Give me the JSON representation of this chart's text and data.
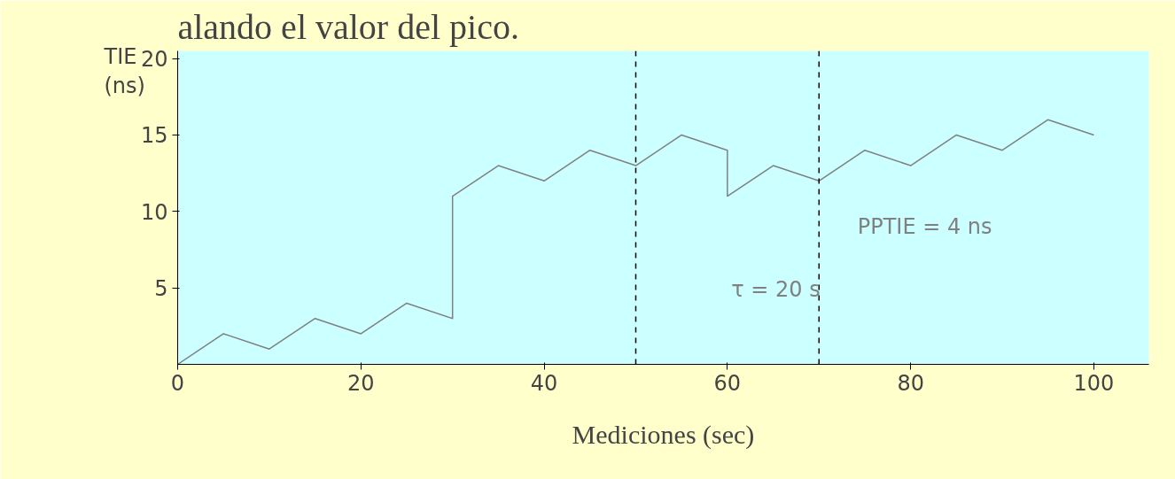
{
  "chart_data": {
    "type": "line",
    "title": "alando el valor del pico.",
    "xlabel": "Mediciones (sec)",
    "ylabel": "TIE (ns)",
    "x": [
      0,
      5,
      10,
      15,
      20,
      25,
      30,
      30,
      35,
      40,
      45,
      50,
      55,
      60,
      60,
      65,
      70,
      75,
      80,
      85,
      90,
      95,
      100
    ],
    "series": [
      {
        "color": "#808080",
        "values": [
          0,
          2,
          1,
          3,
          2,
          4,
          3,
          11,
          13,
          12,
          14,
          13,
          15,
          14,
          11,
          13,
          12,
          14,
          13,
          15,
          14,
          16,
          15
        ]
      }
    ],
    "xlim": [
      0,
      106
    ],
    "xticks": [
      0,
      20,
      40,
      60,
      80,
      100
    ],
    "ylim": [
      0,
      20.5
    ],
    "yticks": [
      5,
      10,
      15,
      20
    ],
    "ref_lines": [
      {
        "axis": "x",
        "value": 50,
        "label": null,
        "line_style": "dashed",
        "color": "#000000"
      },
      {
        "axis": "x",
        "value": 70,
        "label": null,
        "line_style": "dashed",
        "color": "#000000"
      }
    ],
    "annotations": [
      "PPTIE = 4 ns",
      "τ = 20 s"
    ],
    "grid": false,
    "marker": "none",
    "line_style": "solid"
  }
}
